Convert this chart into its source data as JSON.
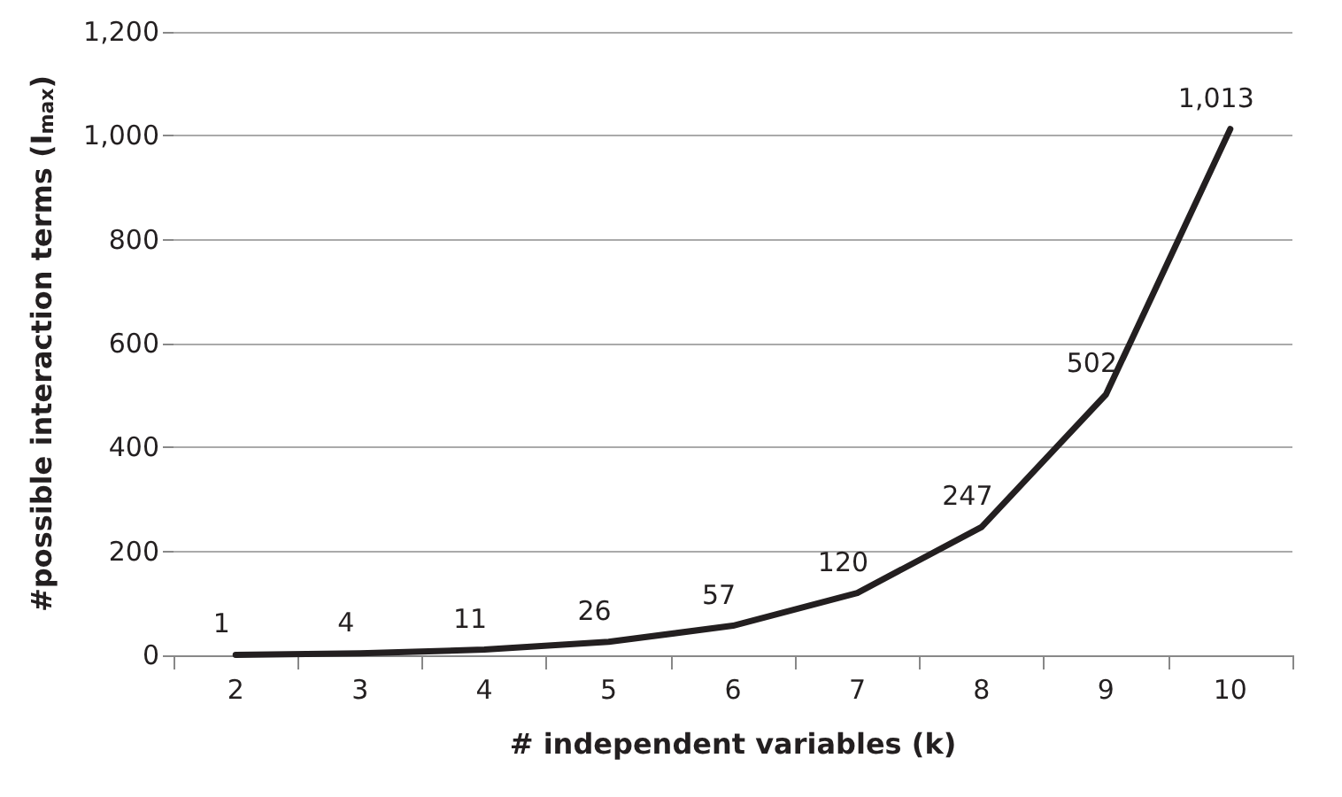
{
  "chart_data": {
    "type": "line",
    "xlabel": "# independent variables (k)",
    "ylabel": "#possible interaction terms (I$_{max}$)",
    "categories": [
      "2",
      "3",
      "4",
      "5",
      "6",
      "7",
      "8",
      "9",
      "10"
    ],
    "series": [
      {
        "color": "#231f20",
        "values": [
          1,
          4,
          11,
          26,
          57,
          120,
          247,
          502,
          1013
        ],
        "value_labels": [
          "1",
          "4",
          "11",
          "26",
          "57",
          "120",
          "247",
          "502",
          "1,013"
        ]
      }
    ],
    "ylim": [
      0,
      1200
    ],
    "yticks": [
      0,
      200,
      400,
      600,
      800,
      {
        "value": 1000,
        "label": "1,000"
      },
      {
        "value": 1200,
        "label": "1,200"
      }
    ],
    "grid": "y",
    "marker": "none",
    "line_style": "solid"
  }
}
